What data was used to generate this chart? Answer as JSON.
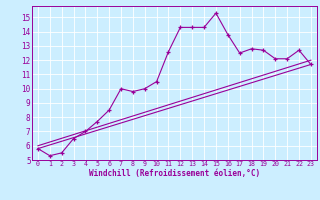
{
  "bg_color": "#cceeff",
  "line_color": "#990099",
  "xlim": [
    -0.5,
    23.5
  ],
  "ylim": [
    5,
    15.8
  ],
  "yticks": [
    5,
    6,
    7,
    8,
    9,
    10,
    11,
    12,
    13,
    14,
    15
  ],
  "xticks": [
    0,
    1,
    2,
    3,
    4,
    5,
    6,
    7,
    8,
    9,
    10,
    11,
    12,
    13,
    14,
    15,
    16,
    17,
    18,
    19,
    20,
    21,
    22,
    23
  ],
  "xlabel": "Windchill (Refroidissement éolien,°C)",
  "main_x": [
    0,
    1,
    2,
    3,
    4,
    5,
    6,
    7,
    8,
    9,
    10,
    11,
    12,
    13,
    14,
    15,
    16,
    17,
    18,
    19,
    20,
    21,
    22,
    23
  ],
  "main_y": [
    5.8,
    5.3,
    5.5,
    6.5,
    7.0,
    7.7,
    8.5,
    10.0,
    9.8,
    10.0,
    10.5,
    12.6,
    14.3,
    14.3,
    14.3,
    15.3,
    13.8,
    12.5,
    12.8,
    12.7,
    12.1,
    12.1,
    12.7,
    11.7
  ],
  "line2_x": [
    0,
    23
  ],
  "line2_y": [
    5.8,
    11.7
  ],
  "line3_x": [
    0,
    23
  ],
  "line3_y": [
    6.0,
    12.0
  ]
}
